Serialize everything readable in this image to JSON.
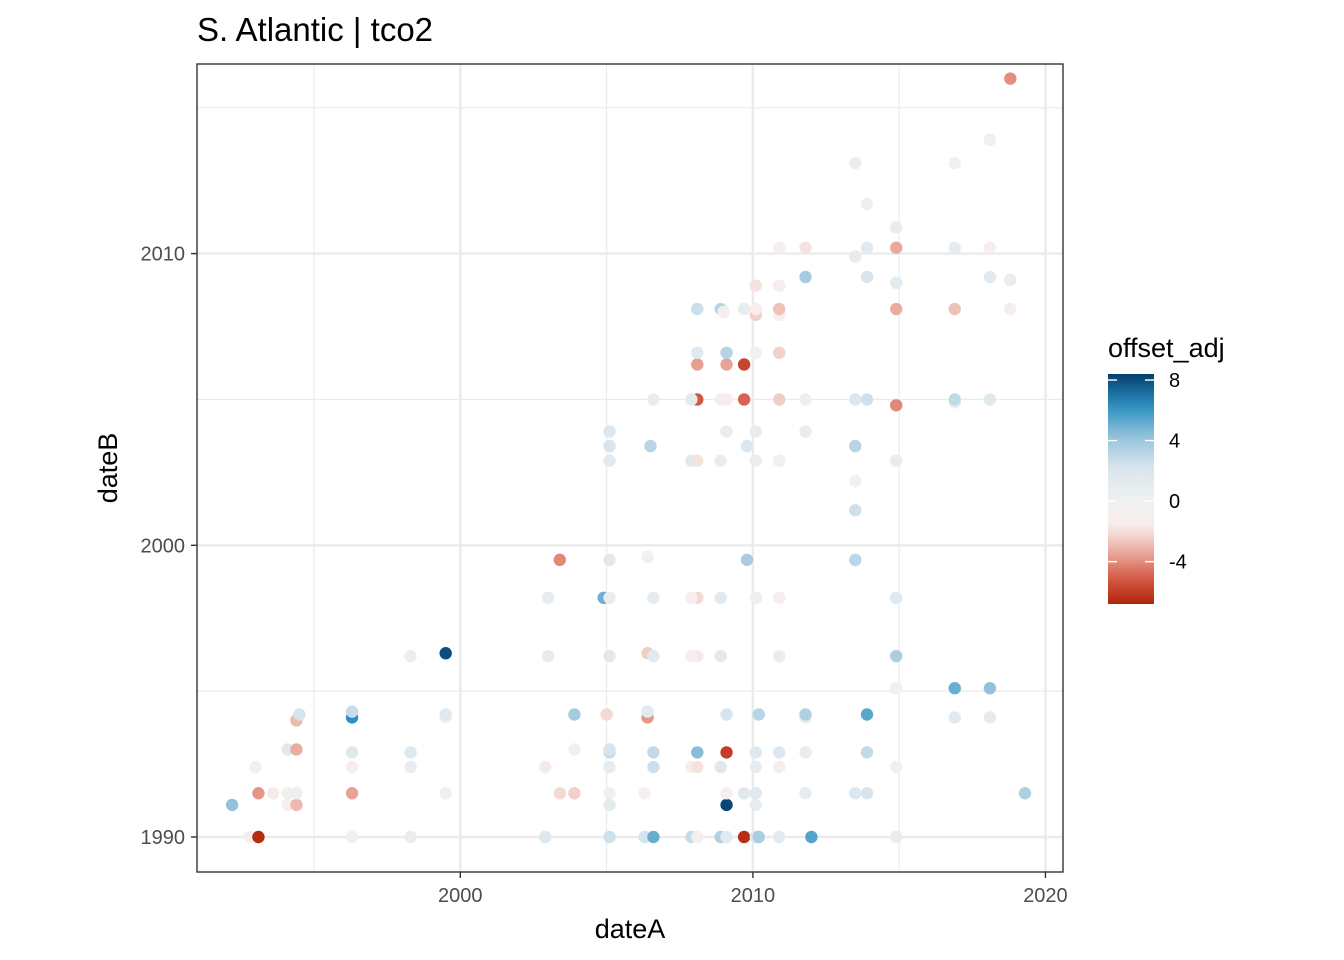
{
  "chart_data": {
    "type": "scatter",
    "title": "S. Atlantic | tco2",
    "xlabel": "dateA",
    "ylabel": "dateB",
    "xlim": [
      1991.0,
      2020.6
    ],
    "ylim": [
      1988.8,
      2016.5
    ],
    "x_ticks": [
      2000,
      2010,
      2020
    ],
    "y_ticks": [
      1990,
      2000,
      2010
    ],
    "x_tick_labels": [
      "2000",
      "2010",
      "2020"
    ],
    "y_tick_labels": [
      "1990",
      "2000",
      "2010"
    ],
    "grid": true,
    "legend": {
      "title": "offset_adj",
      "position": "right",
      "range": [
        -6.8,
        8.4
      ],
      "ticks": [
        8,
        4,
        0,
        -4
      ],
      "tick_labels": [
        "8",
        "4",
        "0",
        "-4"
      ],
      "colors": [
        "#b2250a",
        "#d45b46",
        "#eaa89b",
        "#f7eeec",
        "#f0f0f0",
        "#dbe7ef",
        "#97c4dc",
        "#2c8fc1",
        "#033f6c"
      ]
    },
    "points": [
      {
        "x": 1992.2,
        "y": 1991.1,
        "v": 4.3
      },
      {
        "x": 1992.8,
        "y": 1990.0,
        "v": -1.5
      },
      {
        "x": 1993.1,
        "y": 1990.0,
        "v": -6.6
      },
      {
        "x": 1993.0,
        "y": 1992.4,
        "v": -0.5
      },
      {
        "x": 1993.1,
        "y": 1991.5,
        "v": -3.8
      },
      {
        "x": 1993.6,
        "y": 1991.5,
        "v": -1.8
      },
      {
        "x": 1994.1,
        "y": 1991.1,
        "v": -1.4
      },
      {
        "x": 1994.1,
        "y": 1991.5,
        "v": -0.4
      },
      {
        "x": 1994.4,
        "y": 1991.1,
        "v": -3.0
      },
      {
        "x": 1994.4,
        "y": 1991.5,
        "v": 0.3
      },
      {
        "x": 1994.1,
        "y": 1993.0,
        "v": 1.6
      },
      {
        "x": 1994.4,
        "y": 1993.0,
        "v": -3.3
      },
      {
        "x": 1994.4,
        "y": 1994.0,
        "v": -3.0
      },
      {
        "x": 1994.5,
        "y": 1994.2,
        "v": 2.3
      },
      {
        "x": 1996.3,
        "y": 1990.0,
        "v": -0.3
      },
      {
        "x": 1996.3,
        "y": 1991.5,
        "v": -3.5
      },
      {
        "x": 1996.3,
        "y": 1992.4,
        "v": -0.8
      },
      {
        "x": 1996.3,
        "y": 1992.9,
        "v": 1.9
      },
      {
        "x": 1996.3,
        "y": 1994.1,
        "v": 6.3
      },
      {
        "x": 1996.3,
        "y": 1994.3,
        "v": 2.7
      },
      {
        "x": 1998.3,
        "y": 1990.0,
        "v": 0.7
      },
      {
        "x": 1998.3,
        "y": 1992.4,
        "v": 0.6
      },
      {
        "x": 1998.3,
        "y": 1992.9,
        "v": 1.9
      },
      {
        "x": 1998.3,
        "y": 1996.2,
        "v": 0.5
      },
      {
        "x": 1999.5,
        "y": 1991.5,
        "v": 0.3
      },
      {
        "x": 1999.5,
        "y": 1994.1,
        "v": -1.3
      },
      {
        "x": 1999.5,
        "y": 1994.2,
        "v": 1.8
      },
      {
        "x": 1999.5,
        "y": 1996.3,
        "v": 8.0
      },
      {
        "x": 2002.9,
        "y": 1990.0,
        "v": 1.9
      },
      {
        "x": 2002.9,
        "y": 1992.4,
        "v": -1.8
      },
      {
        "x": 2003.0,
        "y": 1996.2,
        "v": 1.1
      },
      {
        "x": 2003.0,
        "y": 1998.2,
        "v": 0.9
      },
      {
        "x": 2003.4,
        "y": 1991.5,
        "v": -2.2
      },
      {
        "x": 2003.4,
        "y": 1999.5,
        "v": -4.1
      },
      {
        "x": 2003.9,
        "y": 1991.5,
        "v": -2.4
      },
      {
        "x": 2003.9,
        "y": 1993.0,
        "v": -0.1
      },
      {
        "x": 2003.9,
        "y": 1994.2,
        "v": 3.8
      },
      {
        "x": 2004.9,
        "y": 1998.2,
        "v": 5.0
      },
      {
        "x": 2005.1,
        "y": 1990.0,
        "v": 2.5
      },
      {
        "x": 2005.1,
        "y": 1991.1,
        "v": 1.2
      },
      {
        "x": 2005.1,
        "y": 1991.5,
        "v": 0.3
      },
      {
        "x": 2005.1,
        "y": 1992.4,
        "v": 1.0
      },
      {
        "x": 2005.1,
        "y": 1992.9,
        "v": 2.8
      },
      {
        "x": 2005.1,
        "y": 1993.0,
        "v": 2.2
      },
      {
        "x": 2005.0,
        "y": 1994.2,
        "v": -2.2
      },
      {
        "x": 2005.1,
        "y": 1996.2,
        "v": 1.3
      },
      {
        "x": 2005.1,
        "y": 1998.2,
        "v": 0.8
      },
      {
        "x": 2005.1,
        "y": 1999.5,
        "v": 1.7
      },
      {
        "x": 2005.1,
        "y": 2002.9,
        "v": 1.3
      },
      {
        "x": 2005.1,
        "y": 2003.4,
        "v": 2.2
      },
      {
        "x": 2005.1,
        "y": 2003.9,
        "v": 2.0
      },
      {
        "x": 2006.3,
        "y": 1990.0,
        "v": 2.3
      },
      {
        "x": 2006.3,
        "y": 1991.5,
        "v": -1.2
      },
      {
        "x": 2006.4,
        "y": 1994.1,
        "v": -3.8
      },
      {
        "x": 2006.4,
        "y": 1994.3,
        "v": 1.5
      },
      {
        "x": 2006.4,
        "y": 1996.3,
        "v": -2.5
      },
      {
        "x": 2006.4,
        "y": 1999.6,
        "v": -0.2
      },
      {
        "x": 2006.5,
        "y": 2003.4,
        "v": 3.2
      },
      {
        "x": 2006.6,
        "y": 1990.0,
        "v": 5.1
      },
      {
        "x": 2006.6,
        "y": 1992.4,
        "v": 2.6
      },
      {
        "x": 2006.6,
        "y": 1992.9,
        "v": 2.9
      },
      {
        "x": 2006.6,
        "y": 1996.2,
        "v": 1.5
      },
      {
        "x": 2006.6,
        "y": 1998.2,
        "v": 1.1
      },
      {
        "x": 2006.6,
        "y": 2005.0,
        "v": 0.6
      },
      {
        "x": 2007.9,
        "y": 1990.0,
        "v": 2.8
      },
      {
        "x": 2007.9,
        "y": 2002.9,
        "v": 1.3
      },
      {
        "x": 2007.9,
        "y": 1992.4,
        "v": -1.4
      },
      {
        "x": 2008.1,
        "y": 1990.0,
        "v": -0.5
      },
      {
        "x": 2008.1,
        "y": 1992.4,
        "v": -2.0
      },
      {
        "x": 2008.1,
        "y": 1992.9,
        "v": 4.5
      },
      {
        "x": 2008.1,
        "y": 1996.2,
        "v": -1.8
      },
      {
        "x": 2008.1,
        "y": 1998.2,
        "v": -2.2
      },
      {
        "x": 2008.1,
        "y": 2002.9,
        "v": -2.0
      },
      {
        "x": 2008.1,
        "y": 2005.0,
        "v": -5.2
      },
      {
        "x": 2008.1,
        "y": 2006.2,
        "v": -3.6
      },
      {
        "x": 2008.1,
        "y": 2006.6,
        "v": 1.6
      },
      {
        "x": 2008.1,
        "y": 2008.1,
        "v": 2.6
      },
      {
        "x": 2007.9,
        "y": 1996.2,
        "v": -0.7
      },
      {
        "x": 2007.9,
        "y": 1998.2,
        "v": -1.4
      },
      {
        "x": 2007.9,
        "y": 2005.0,
        "v": 1.4
      },
      {
        "x": 2008.9,
        "y": 1990.0,
        "v": 3.4
      },
      {
        "x": 2008.9,
        "y": 1992.4,
        "v": 1.9
      },
      {
        "x": 2008.9,
        "y": 1996.2,
        "v": 1.5
      },
      {
        "x": 2008.9,
        "y": 1998.2,
        "v": 1.3
      },
      {
        "x": 2008.9,
        "y": 2002.9,
        "v": 0.8
      },
      {
        "x": 2008.9,
        "y": 2005.0,
        "v": -1.4
      },
      {
        "x": 2008.9,
        "y": 2008.1,
        "v": 3.2
      },
      {
        "x": 2009.1,
        "y": 1990.0,
        "v": 1.5
      },
      {
        "x": 2009.1,
        "y": 1991.1,
        "v": 8.2
      },
      {
        "x": 2009.1,
        "y": 1991.5,
        "v": -1.2
      },
      {
        "x": 2009.1,
        "y": 1992.9,
        "v": -6.0
      },
      {
        "x": 2009.1,
        "y": 1994.2,
        "v": 2.3
      },
      {
        "x": 2009.1,
        "y": 2003.9,
        "v": 0.8
      },
      {
        "x": 2009.1,
        "y": 2005.0,
        "v": -1.7
      },
      {
        "x": 2009.1,
        "y": 2006.2,
        "v": -3.5
      },
      {
        "x": 2009.1,
        "y": 2006.6,
        "v": 3.3
      },
      {
        "x": 2009.0,
        "y": 2008.0,
        "v": -0.8
      },
      {
        "x": 2009.7,
        "y": 1990.0,
        "v": -6.5
      },
      {
        "x": 2009.7,
        "y": 1991.5,
        "v": 1.6
      },
      {
        "x": 2009.7,
        "y": 2005.0,
        "v": -4.9
      },
      {
        "x": 2009.7,
        "y": 2006.2,
        "v": -5.8
      },
      {
        "x": 2009.7,
        "y": 2008.1,
        "v": 1.0
      },
      {
        "x": 2009.8,
        "y": 1999.5,
        "v": 3.6
      },
      {
        "x": 2009.8,
        "y": 2003.4,
        "v": 2.1
      },
      {
        "x": 2010.1,
        "y": 1990.0,
        "v": 1.8
      },
      {
        "x": 2010.2,
        "y": 1990.0,
        "v": 3.6
      },
      {
        "x": 2010.1,
        "y": 1991.1,
        "v": 1.0
      },
      {
        "x": 2010.1,
        "y": 1991.5,
        "v": 1.6
      },
      {
        "x": 2010.1,
        "y": 1992.4,
        "v": 1.0
      },
      {
        "x": 2010.1,
        "y": 1992.9,
        "v": 1.8
      },
      {
        "x": 2010.2,
        "y": 1994.2,
        "v": 3.2
      },
      {
        "x": 2010.1,
        "y": 1998.2,
        "v": 0.4
      },
      {
        "x": 2010.1,
        "y": 2002.9,
        "v": 0.6
      },
      {
        "x": 2010.1,
        "y": 2003.9,
        "v": 0.9
      },
      {
        "x": 2010.1,
        "y": 2006.6,
        "v": -0.8
      },
      {
        "x": 2010.1,
        "y": 2007.9,
        "v": -2.4
      },
      {
        "x": 2010.1,
        "y": 2008.1,
        "v": -1.6
      },
      {
        "x": 2010.1,
        "y": 2008.9,
        "v": -2.0
      },
      {
        "x": 2010.9,
        "y": 1990.0,
        "v": 1.3
      },
      {
        "x": 2010.9,
        "y": 1992.4,
        "v": -1.4
      },
      {
        "x": 2010.9,
        "y": 1992.9,
        "v": 2.0
      },
      {
        "x": 2010.9,
        "y": 1996.2,
        "v": 0.7
      },
      {
        "x": 2010.9,
        "y": 1998.2,
        "v": -1.5
      },
      {
        "x": 2010.9,
        "y": 2002.9,
        "v": -0.4
      },
      {
        "x": 2010.9,
        "y": 2005.0,
        "v": -2.5
      },
      {
        "x": 2010.9,
        "y": 2006.6,
        "v": -2.4
      },
      {
        "x": 2010.9,
        "y": 2007.9,
        "v": -1.3
      },
      {
        "x": 2010.9,
        "y": 2008.1,
        "v": -2.8
      },
      {
        "x": 2010.9,
        "y": 2008.9,
        "v": -1.4
      },
      {
        "x": 2010.9,
        "y": 2010.2,
        "v": -1.0
      },
      {
        "x": 2011.8,
        "y": 1991.5,
        "v": 1.0
      },
      {
        "x": 2011.8,
        "y": 1992.9,
        "v": 1.0
      },
      {
        "x": 2011.8,
        "y": 1994.1,
        "v": 1.0
      },
      {
        "x": 2011.8,
        "y": 1994.2,
        "v": 3.5
      },
      {
        "x": 2011.8,
        "y": 2003.9,
        "v": 1.0
      },
      {
        "x": 2011.8,
        "y": 2005.0,
        "v": 0.3
      },
      {
        "x": 2011.8,
        "y": 2009.2,
        "v": 3.8
      },
      {
        "x": 2011.8,
        "y": 2010.2,
        "v": -2.0
      },
      {
        "x": 2012.0,
        "y": 1990.0,
        "v": 5.5
      },
      {
        "x": 2013.5,
        "y": 1991.5,
        "v": 2.0
      },
      {
        "x": 2013.5,
        "y": 1999.5,
        "v": 3.1
      },
      {
        "x": 2013.5,
        "y": 2001.2,
        "v": 2.5
      },
      {
        "x": 2013.5,
        "y": 2002.2,
        "v": -1.1
      },
      {
        "x": 2013.5,
        "y": 2003.4,
        "v": 3.2
      },
      {
        "x": 2013.5,
        "y": 2005.0,
        "v": 2.1
      },
      {
        "x": 2013.5,
        "y": 2009.9,
        "v": 1.1
      },
      {
        "x": 2013.5,
        "y": 2013.1,
        "v": 0.6
      },
      {
        "x": 2013.9,
        "y": 1991.5,
        "v": 2.2
      },
      {
        "x": 2013.9,
        "y": 1992.9,
        "v": 2.9
      },
      {
        "x": 2013.9,
        "y": 1994.2,
        "v": 5.4
      },
      {
        "x": 2013.9,
        "y": 2005.0,
        "v": 2.5
      },
      {
        "x": 2013.9,
        "y": 2009.2,
        "v": 2.2
      },
      {
        "x": 2013.9,
        "y": 2010.2,
        "v": 1.5
      },
      {
        "x": 2013.9,
        "y": 2011.7,
        "v": 0.2
      },
      {
        "x": 2014.9,
        "y": 1990.0,
        "v": 1.0
      },
      {
        "x": 2014.9,
        "y": 1992.4,
        "v": -0.6
      },
      {
        "x": 2014.9,
        "y": 1995.1,
        "v": -0.8
      },
      {
        "x": 2014.9,
        "y": 1996.2,
        "v": 3.6
      },
      {
        "x": 2014.9,
        "y": 1998.2,
        "v": 1.7
      },
      {
        "x": 2014.9,
        "y": 2002.9,
        "v": 1.0
      },
      {
        "x": 2014.9,
        "y": 2004.8,
        "v": -4.1
      },
      {
        "x": 2014.9,
        "y": 2008.1,
        "v": -3.3
      },
      {
        "x": 2014.9,
        "y": 2009.0,
        "v": 1.5
      },
      {
        "x": 2014.9,
        "y": 2010.2,
        "v": -3.4
      },
      {
        "x": 2014.9,
        "y": 2010.9,
        "v": 1.0
      },
      {
        "x": 2016.9,
        "y": 1994.1,
        "v": 1.5
      },
      {
        "x": 2016.9,
        "y": 1995.1,
        "v": 5.1
      },
      {
        "x": 2016.9,
        "y": 2004.9,
        "v": 0.4
      },
      {
        "x": 2016.9,
        "y": 2005.0,
        "v": 2.9
      },
      {
        "x": 2016.9,
        "y": 2008.1,
        "v": -2.8
      },
      {
        "x": 2016.9,
        "y": 2010.2,
        "v": 1.1
      },
      {
        "x": 2016.9,
        "y": 2013.1,
        "v": -0.2
      },
      {
        "x": 2018.1,
        "y": 1994.1,
        "v": 1.2
      },
      {
        "x": 2018.1,
        "y": 1995.1,
        "v": 4.3
      },
      {
        "x": 2018.1,
        "y": 2005.0,
        "v": 1.9
      },
      {
        "x": 2018.1,
        "y": 2009.2,
        "v": 1.3
      },
      {
        "x": 2018.1,
        "y": 2010.2,
        "v": -1.5
      },
      {
        "x": 2018.1,
        "y": 2013.9,
        "v": -0.5
      },
      {
        "x": 2018.8,
        "y": 2008.1,
        "v": -1.0
      },
      {
        "x": 2018.8,
        "y": 2009.1,
        "v": 0.6
      },
      {
        "x": 2018.8,
        "y": 2016.0,
        "v": -4.0
      },
      {
        "x": 2019.3,
        "y": 1991.5,
        "v": 3.5
      }
    ]
  }
}
